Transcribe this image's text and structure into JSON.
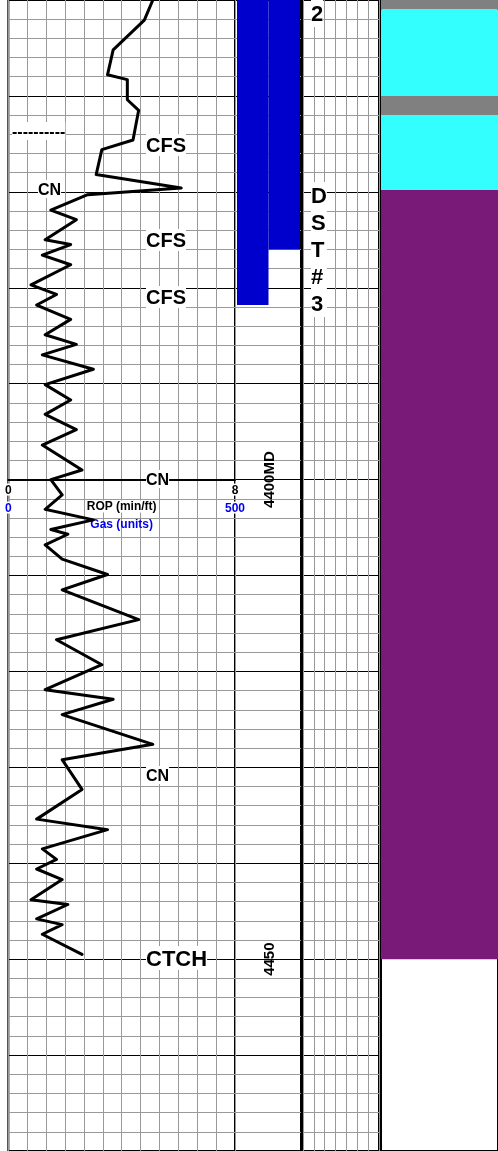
{
  "chart_data": [
    {
      "type": "line",
      "orientation": "horizontal",
      "xlabel": "ROP (min/ft)",
      "xlim": [
        0,
        8
      ],
      "xticks": [
        0,
        8
      ],
      "x2label": "Gas (units)",
      "x2lim": [
        0,
        500
      ],
      "x2ticks": [
        0,
        500
      ],
      "ylim": [
        4470,
        4350
      ],
      "yticks": [
        {
          "value": 4400,
          "label": "4400MD"
        },
        4450
      ],
      "grid": true,
      "marker": "none",
      "line_style": "solid",
      "series": [
        {
          "color": "#000000",
          "x": [
            4350,
            4352.1,
            4355.2,
            4357.8,
            4358.3,
            4360.4,
            4361.5,
            4364.6,
            4365.6,
            4368.2,
            4369.6,
            4370.3,
            4371.9,
            4372.9,
            4375,
            4375.5,
            4376.6,
            4377.6,
            4379.7,
            4380.7,
            4381.8,
            4383.3,
            4384.9,
            4385.9,
            4387,
            4388.5,
            4390.1,
            4391.7,
            4393.2,
            4394.8,
            4396.4,
            4399,
            4400,
            4401.6,
            4403.1,
            4404.2,
            4405.2,
            4405.7,
            4406.8,
            4408.3,
            4409.9,
            4411.5,
            4414.6,
            4416.7,
            4419.3,
            4421.9,
            4422.9,
            4424.5,
            4427.6,
            4429.2,
            4432.3,
            4435.4,
            4436.5,
            4438.5,
            4439.6,
            4440.6,
            4441.7,
            4443.8,
            4444.3,
            4445.8,
            4446.4,
            4447.4,
            4449.5
          ],
          "values": [
            5.1,
            4.8,
            3.7,
            3.5,
            4.2,
            4.2,
            4.6,
            4.4,
            3.3,
            3.1,
            6.1,
            2.8,
            1.5,
            2.4,
            1.3,
            2.2,
            1.2,
            2.2,
            0.8,
            1.7,
            1.0,
            2.2,
            1.3,
            2.4,
            1.2,
            3.0,
            1.3,
            2.2,
            1.3,
            2.4,
            1.2,
            2.6,
            1.5,
            1.9,
            1.3,
            3.0,
            1.5,
            2.1,
            1.3,
            1.9,
            3.5,
            1.9,
            4.6,
            1.7,
            3.3,
            1.3,
            3.7,
            1.9,
            5.1,
            1.9,
            2.6,
            1.0,
            3.5,
            1.2,
            1.7,
            1.0,
            1.9,
            0.8,
            2.1,
            1.0,
            1.9,
            1.2,
            2.6
          ]
        }
      ],
      "annotations": [
        "CFS",
        "CN",
        "CFS",
        "CFS",
        "CN",
        "CN",
        "2",
        "DST#3",
        "CTCH",
        "----------"
      ]
    },
    {
      "type": "bar",
      "categories": [
        null,
        null
      ],
      "base": [
        4350,
        4350
      ],
      "values": [
        31.8,
        26
      ],
      "color": "#0000cc",
      "ylim": [
        4470,
        4350
      ],
      "tick_labels": false
    },
    {
      "type": "bar",
      "categories": [
        null
      ],
      "ylim": [
        4470,
        4350
      ],
      "tick_labels": false,
      "series": [
        {
          "color": "#808080",
          "base": [
            4350
          ],
          "values": [
            1
          ]
        },
        {
          "color": "#33ffff",
          "base": [
            4351
          ],
          "values": [
            9
          ]
        },
        {
          "color": "#808080",
          "base": [
            4360
          ],
          "values": [
            2
          ]
        },
        {
          "color": "#33ffff",
          "base": [
            4362
          ],
          "values": [
            7.8
          ]
        },
        {
          "color": "#7a1a78",
          "base": [
            4369.8
          ],
          "values": [
            80.2
          ]
        }
      ]
    }
  ]
}
